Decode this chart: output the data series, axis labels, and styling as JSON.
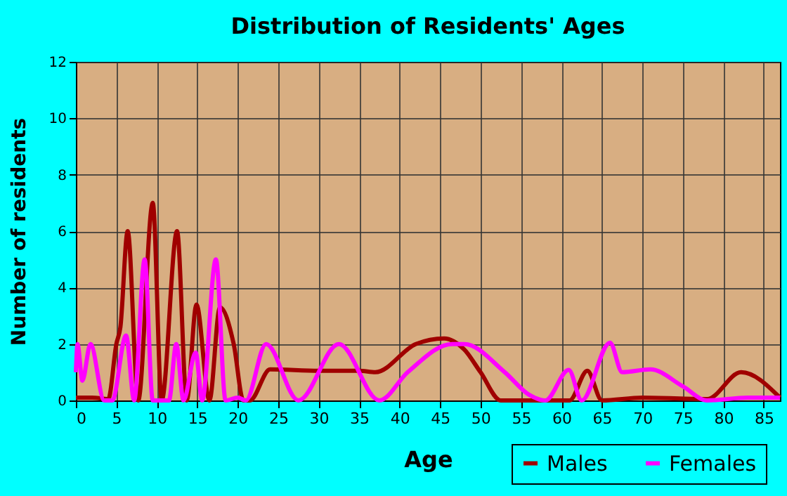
{
  "chart_data": {
    "type": "line",
    "title": "Distribution of Residents' Ages",
    "xlabel": "Age",
    "ylabel": "Number of residents",
    "xlim": [
      0,
      87
    ],
    "ylim": [
      0,
      12
    ],
    "xticks": [
      0,
      5,
      10,
      15,
      20,
      25,
      30,
      35,
      40,
      45,
      50,
      55,
      60,
      65,
      70,
      75,
      80,
      85
    ],
    "yticks": [
      0,
      2,
      4,
      6,
      8,
      10,
      12
    ],
    "grid": true,
    "legend": "bottom right",
    "marker": "none",
    "line_style": "solid",
    "series": [
      {
        "name": "Males",
        "color": "#a00000",
        "x": [
          0,
          2,
          4,
          5,
          5.5,
          6.4,
          7.7,
          9.5,
          10.6,
          12.5,
          13.7,
          14.9,
          16.5,
          17.8,
          19.5,
          20.7,
          21.5,
          24,
          30,
          35,
          37,
          42,
          45.5,
          48,
          50,
          52.5,
          61,
          63.2,
          65,
          70,
          78,
          82.2,
          87
        ],
        "values": [
          0.1,
          0.1,
          0.05,
          2,
          2.6,
          6,
          0,
          7,
          0,
          6,
          0,
          3.4,
          0,
          3.3,
          2,
          0,
          0,
          1.1,
          1.05,
          1.05,
          1,
          2,
          2.2,
          1.8,
          1,
          0,
          0,
          1.05,
          0,
          0.1,
          0.05,
          1,
          0.1
        ]
      },
      {
        "name": "Females",
        "color": "#ff00ff",
        "x": [
          0,
          0.2,
          0.8,
          1.8,
          3.5,
          4.5,
          6.2,
          7.2,
          8.5,
          9.5,
          11.5,
          12.4,
          13.3,
          14.8,
          15.6,
          17.3,
          18.5,
          20,
          21,
          23.5,
          27.5,
          32.5,
          37.5,
          41,
          46.5,
          48,
          53,
          56,
          58,
          60.9,
          62.5,
          66,
          67.5,
          71,
          75,
          78,
          83,
          87
        ],
        "values": [
          1,
          2,
          0.7,
          2,
          0,
          0,
          2.3,
          0,
          5,
          0,
          0,
          2,
          0,
          1.7,
          0,
          5,
          0,
          0.1,
          0,
          2,
          0,
          2,
          0,
          1,
          2,
          2,
          1,
          0.2,
          0,
          1.08,
          0,
          2.05,
          1,
          1.1,
          0.5,
          0,
          0.1,
          0.1
        ]
      }
    ]
  }
}
